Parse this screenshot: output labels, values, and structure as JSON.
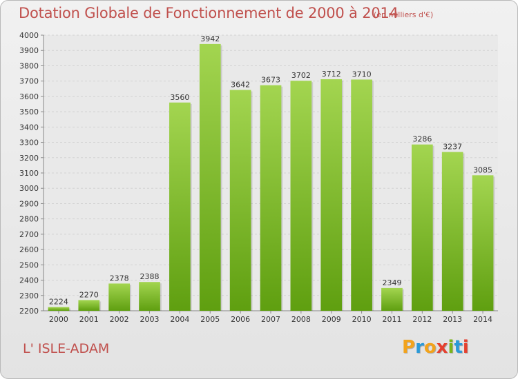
{
  "header": {
    "title": "Dotation Globale de Fonctionnement de 2000 à 2014",
    "unit": "(en milliers d'€)"
  },
  "footer": {
    "town": "L' ISLE-ADAM",
    "brand": [
      "P",
      "r",
      "o",
      "x",
      "i",
      "t",
      "i"
    ],
    "brand_colors": [
      "#f2a31c",
      "#2a9ad8",
      "#f2a31c",
      "#e5402f",
      "#7ab41a",
      "#2a9ad8",
      "#e5402f"
    ]
  },
  "colors": {
    "bar_light": "#a3d550",
    "bar_dark": "#5f9f10",
    "title": "#c0504d",
    "grid": "#d2d2d2"
  },
  "chart_data": {
    "type": "bar",
    "title": "Dotation Globale de Fonctionnement de 2000 à 2014",
    "categories": [
      "2000",
      "2001",
      "2002",
      "2003",
      "2004",
      "2005",
      "2006",
      "2007",
      "2008",
      "2009",
      "2010",
      "2011",
      "2012",
      "2013",
      "2014"
    ],
    "values": [
      2224,
      2270,
      2378,
      2388,
      3560,
      3942,
      3642,
      3673,
      3702,
      3712,
      3710,
      2349,
      3286,
      3237,
      3085
    ],
    "ylim": [
      2200,
      4000
    ],
    "ytick_step": 100,
    "grid": true
  }
}
